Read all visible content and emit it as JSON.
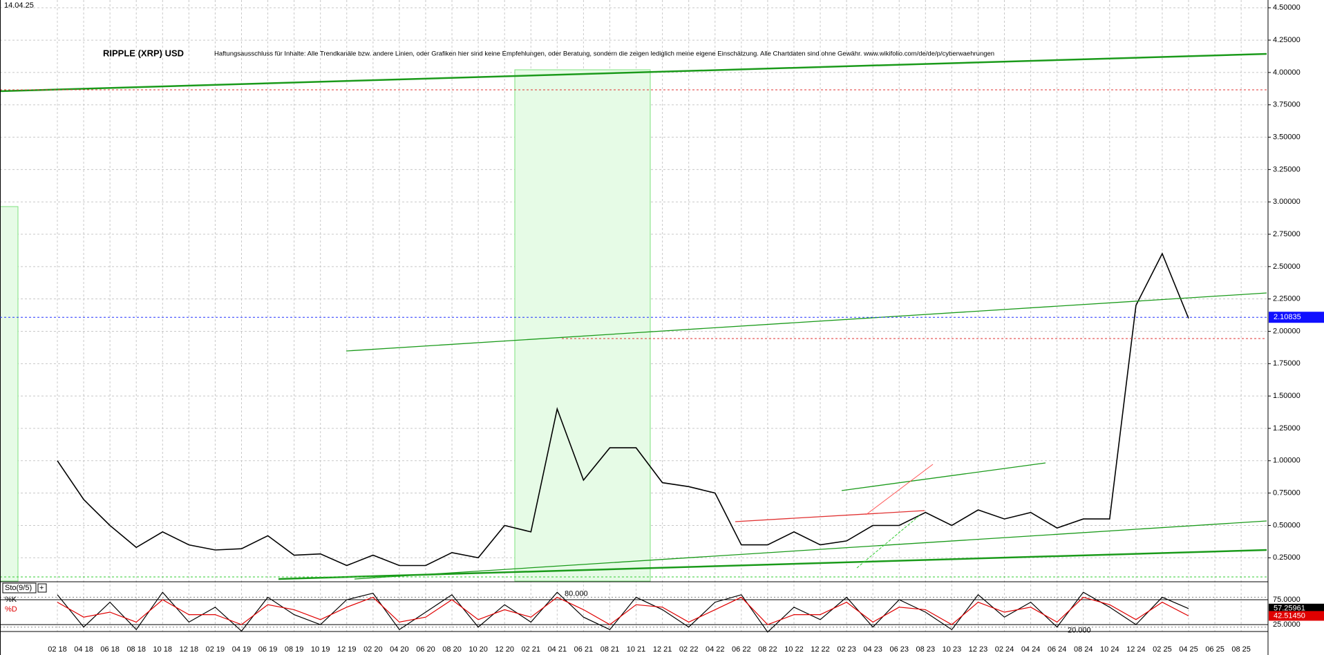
{
  "chart_data": [
    {
      "type": "line",
      "title": "RIPPLE (XRP) USD",
      "date": "14.04.25",
      "subtitle": "Haftungsausschluss für Inhalte: Alle Trendkanäle bzw. andere Linien, oder Grafiken hier sind keine Empfehlungen, oder Beratung, sondern die zeigen lediglich meine eigene Einschätzung. Alle Chartdaten sind ohne Gewähr. www.wikifolio.com/de/de/p/cyberwaehrungen",
      "categories": [
        "02 18",
        "04 18",
        "06 18",
        "08 18",
        "10 18",
        "12 18",
        "02 19",
        "04 19",
        "06 19",
        "08 19",
        "10 19",
        "12 19",
        "02 20",
        "04 20",
        "06 20",
        "08 20",
        "10 20",
        "12 20",
        "02 21",
        "04 21",
        "06 21",
        "08 21",
        "10 21",
        "12 21",
        "02 22",
        "04 22",
        "06 22",
        "08 22",
        "10 22",
        "12 22",
        "02 23",
        "04 23",
        "06 23",
        "08 23",
        "10 23",
        "12 23",
        "02 24",
        "04 24",
        "06 24",
        "08 24",
        "10 24",
        "12 24",
        "02 25",
        "04 25",
        "06 25",
        "08 25"
      ],
      "series": [
        {
          "name": "RIPPLE (XRP) USD",
          "color": "#000000",
          "values": [
            1.0,
            0.7,
            0.5,
            0.33,
            0.45,
            0.35,
            0.31,
            0.32,
            0.42,
            0.27,
            0.28,
            0.19,
            0.27,
            0.19,
            0.19,
            0.29,
            0.25,
            0.5,
            0.45,
            1.4,
            0.85,
            1.1,
            1.1,
            0.83,
            0.8,
            0.75,
            0.35,
            0.35,
            0.45,
            0.35,
            0.38,
            0.5,
            0.5,
            0.6,
            0.5,
            0.62,
            0.55,
            0.6,
            0.48,
            0.55,
            0.55,
            2.2,
            2.6,
            2.1,
            null,
            null
          ]
        }
      ],
      "last_value": 2.10835,
      "ylim": [
        0.07,
        4.56
      ],
      "yticks": [
        {
          "value": 0.25,
          "label": "0.25000"
        },
        {
          "value": 0.5,
          "label": "0.50000"
        },
        {
          "value": 0.75,
          "label": "0.75000"
        },
        {
          "value": 1.0,
          "label": "1.00000"
        },
        {
          "value": 1.25,
          "label": "1.25000"
        },
        {
          "value": 1.5,
          "label": "1.50000"
        },
        {
          "value": 1.75,
          "label": "1.75000"
        },
        {
          "value": 2.0,
          "label": "2.00000"
        },
        {
          "value": 2.25,
          "label": "2.25000"
        },
        {
          "value": 2.5,
          "label": "2.50000"
        },
        {
          "value": 2.75,
          "label": "2.75000"
        },
        {
          "value": 3.0,
          "label": "3.00000"
        },
        {
          "value": 3.25,
          "label": "3.25000"
        },
        {
          "value": 3.5,
          "label": "3.50000"
        },
        {
          "value": 3.75,
          "label": "3.75000"
        },
        {
          "value": 4.0,
          "label": "4.00000"
        },
        {
          "value": 4.25,
          "label": "4.25000"
        },
        {
          "value": 4.5,
          "label": "4.50000"
        }
      ],
      "grid": true
    },
    {
      "type": "line",
      "title": "Sto(9/5)",
      "series": [
        {
          "name": "%K",
          "color": "#000000",
          "values": [
            85,
            20,
            70,
            15,
            90,
            30,
            60,
            12,
            80,
            45,
            25,
            75,
            88,
            15,
            50,
            85,
            20,
            65,
            30,
            90,
            40,
            15,
            80,
            55,
            20,
            70,
            85,
            10,
            60,
            35,
            80,
            20,
            75,
            50,
            15,
            85,
            40,
            70,
            20,
            90,
            60,
            25,
            80,
            57.26,
            null,
            null
          ]
        },
        {
          "name": "%D",
          "color": "#e00000",
          "values": [
            70,
            40,
            50,
            30,
            75,
            45,
            45,
            25,
            65,
            55,
            35,
            60,
            80,
            30,
            40,
            75,
            35,
            55,
            40,
            80,
            55,
            25,
            65,
            60,
            30,
            55,
            80,
            25,
            45,
            45,
            70,
            30,
            60,
            55,
            25,
            70,
            50,
            60,
            30,
            80,
            65,
            35,
            70,
            42.51,
            null,
            null
          ]
        }
      ],
      "last_values": [
        57.25961,
        42.5145
      ],
      "last_value_labels": [
        "57.25961",
        "42.51450"
      ],
      "levels": [
        {
          "value": 80,
          "label": "80.000"
        },
        {
          "value": 20,
          "label": "20.000"
        }
      ],
      "ylim": [
        0,
        100
      ],
      "yticks": [
        {
          "value": 25,
          "label": "25.0000"
        },
        {
          "value": 75,
          "label": "75.0000"
        }
      ]
    }
  ]
}
